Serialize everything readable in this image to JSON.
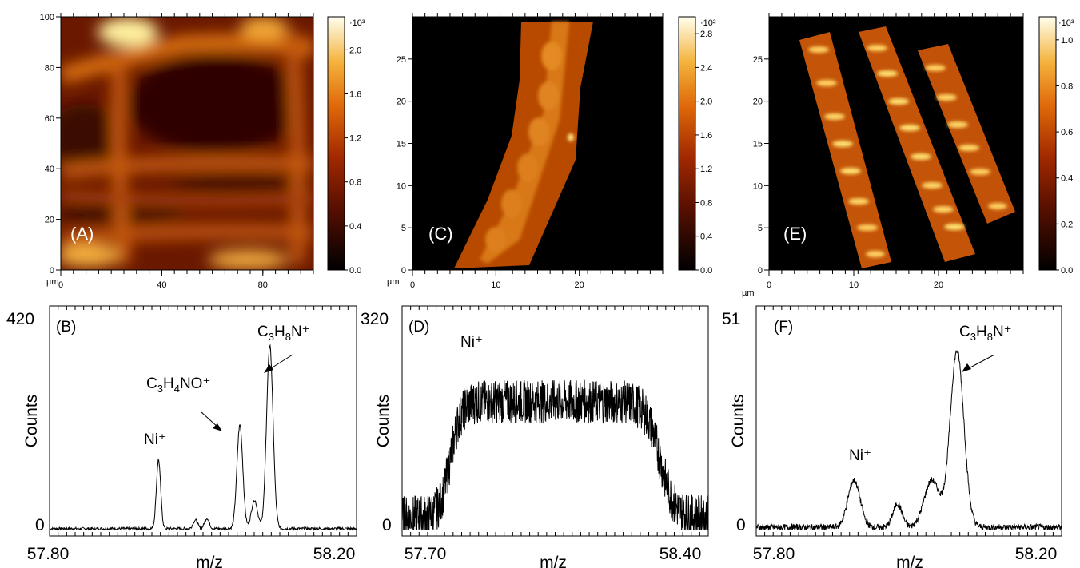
{
  "chart_data": [
    {
      "type": "heatmap",
      "panel_label": "(A)",
      "axis_unit": "µm",
      "xlim": [
        0,
        100
      ],
      "ylim": [
        0,
        100
      ],
      "xticks": [
        0,
        40,
        80
      ],
      "yticks": [
        0,
        20,
        40,
        60,
        80,
        100
      ],
      "colorbar": {
        "multiplier": "·10³",
        "range": [
          0,
          2.3
        ],
        "ticks": [
          "0.0",
          "0.4",
          "0.8",
          "1.2",
          "1.6",
          "2.0"
        ]
      },
      "grid": false
    },
    {
      "type": "heatmap",
      "panel_label": "(C)",
      "axis_unit": "µm",
      "xlim": [
        0,
        30
      ],
      "ylim": [
        0,
        30
      ],
      "xticks": [
        0,
        10,
        20
      ],
      "yticks": [
        0,
        5,
        10,
        15,
        20,
        25
      ],
      "colorbar": {
        "multiplier": "·10²",
        "range": [
          0,
          3.0
        ],
        "ticks": [
          "0.0",
          "0.4",
          "0.8",
          "1.2",
          "1.6",
          "2.0",
          "2.4",
          "2.8"
        ]
      },
      "grid": false
    },
    {
      "type": "heatmap",
      "panel_label": "(E)",
      "axis_unit": "µm",
      "xlim": [
        0,
        30
      ],
      "ylim": [
        0,
        30
      ],
      "xticks": [
        0,
        10,
        20
      ],
      "yticks": [
        0,
        5,
        10,
        15,
        20,
        25
      ],
      "colorbar": {
        "multiplier": "·10³",
        "range": [
          0,
          1.1
        ],
        "ticks": [
          "0.0",
          "0.2",
          "0.4",
          "0.6",
          "0.8",
          "1.0"
        ]
      },
      "grid": false
    },
    {
      "type": "line",
      "panel_label": "(B)",
      "xlabel": "m/z",
      "ylabel": "Counts",
      "xlim": [
        57.8,
        58.2
      ],
      "ylim": [
        0,
        420
      ],
      "x_tick_labels": [
        "57.80",
        "58.20"
      ],
      "y_tick_labels": [
        "0",
        "420"
      ],
      "peaks": [
        {
          "label": "Ni⁺",
          "x": 57.942,
          "y": 145
        },
        {
          "label": "C₃H₄NO⁺",
          "x": 58.048,
          "y": 218
        },
        {
          "label": "C₃H₈N⁺",
          "x": 58.087,
          "y": 385
        }
      ]
    },
    {
      "type": "line",
      "panel_label": "(D)",
      "xlabel": "m/z",
      "ylabel": "Counts",
      "xlim": [
        57.7,
        58.4
      ],
      "ylim": [
        0,
        320
      ],
      "x_tick_labels": [
        "57.70",
        "58.40"
      ],
      "y_tick_labels": [
        "0",
        "320"
      ],
      "peaks": [
        {
          "label": "Ni⁺",
          "x": 57.85,
          "y": 200
        }
      ],
      "plateau": {
        "x_start": 57.83,
        "x_end": 58.28,
        "level": 185
      }
    },
    {
      "type": "line",
      "panel_label": "(F)",
      "xlabel": "m/z",
      "ylabel": "Counts",
      "xlim": [
        57.8,
        58.2
      ],
      "ylim": [
        0,
        51
      ],
      "x_tick_labels": [
        "57.80",
        "58.20"
      ],
      "y_tick_labels": [
        "0",
        "51"
      ],
      "peaks": [
        {
          "label": "Ni⁺",
          "x": 57.928,
          "y": 12
        },
        {
          "label": "C₃H₈N⁺",
          "x": 58.063,
          "y": 45
        }
      ]
    }
  ]
}
